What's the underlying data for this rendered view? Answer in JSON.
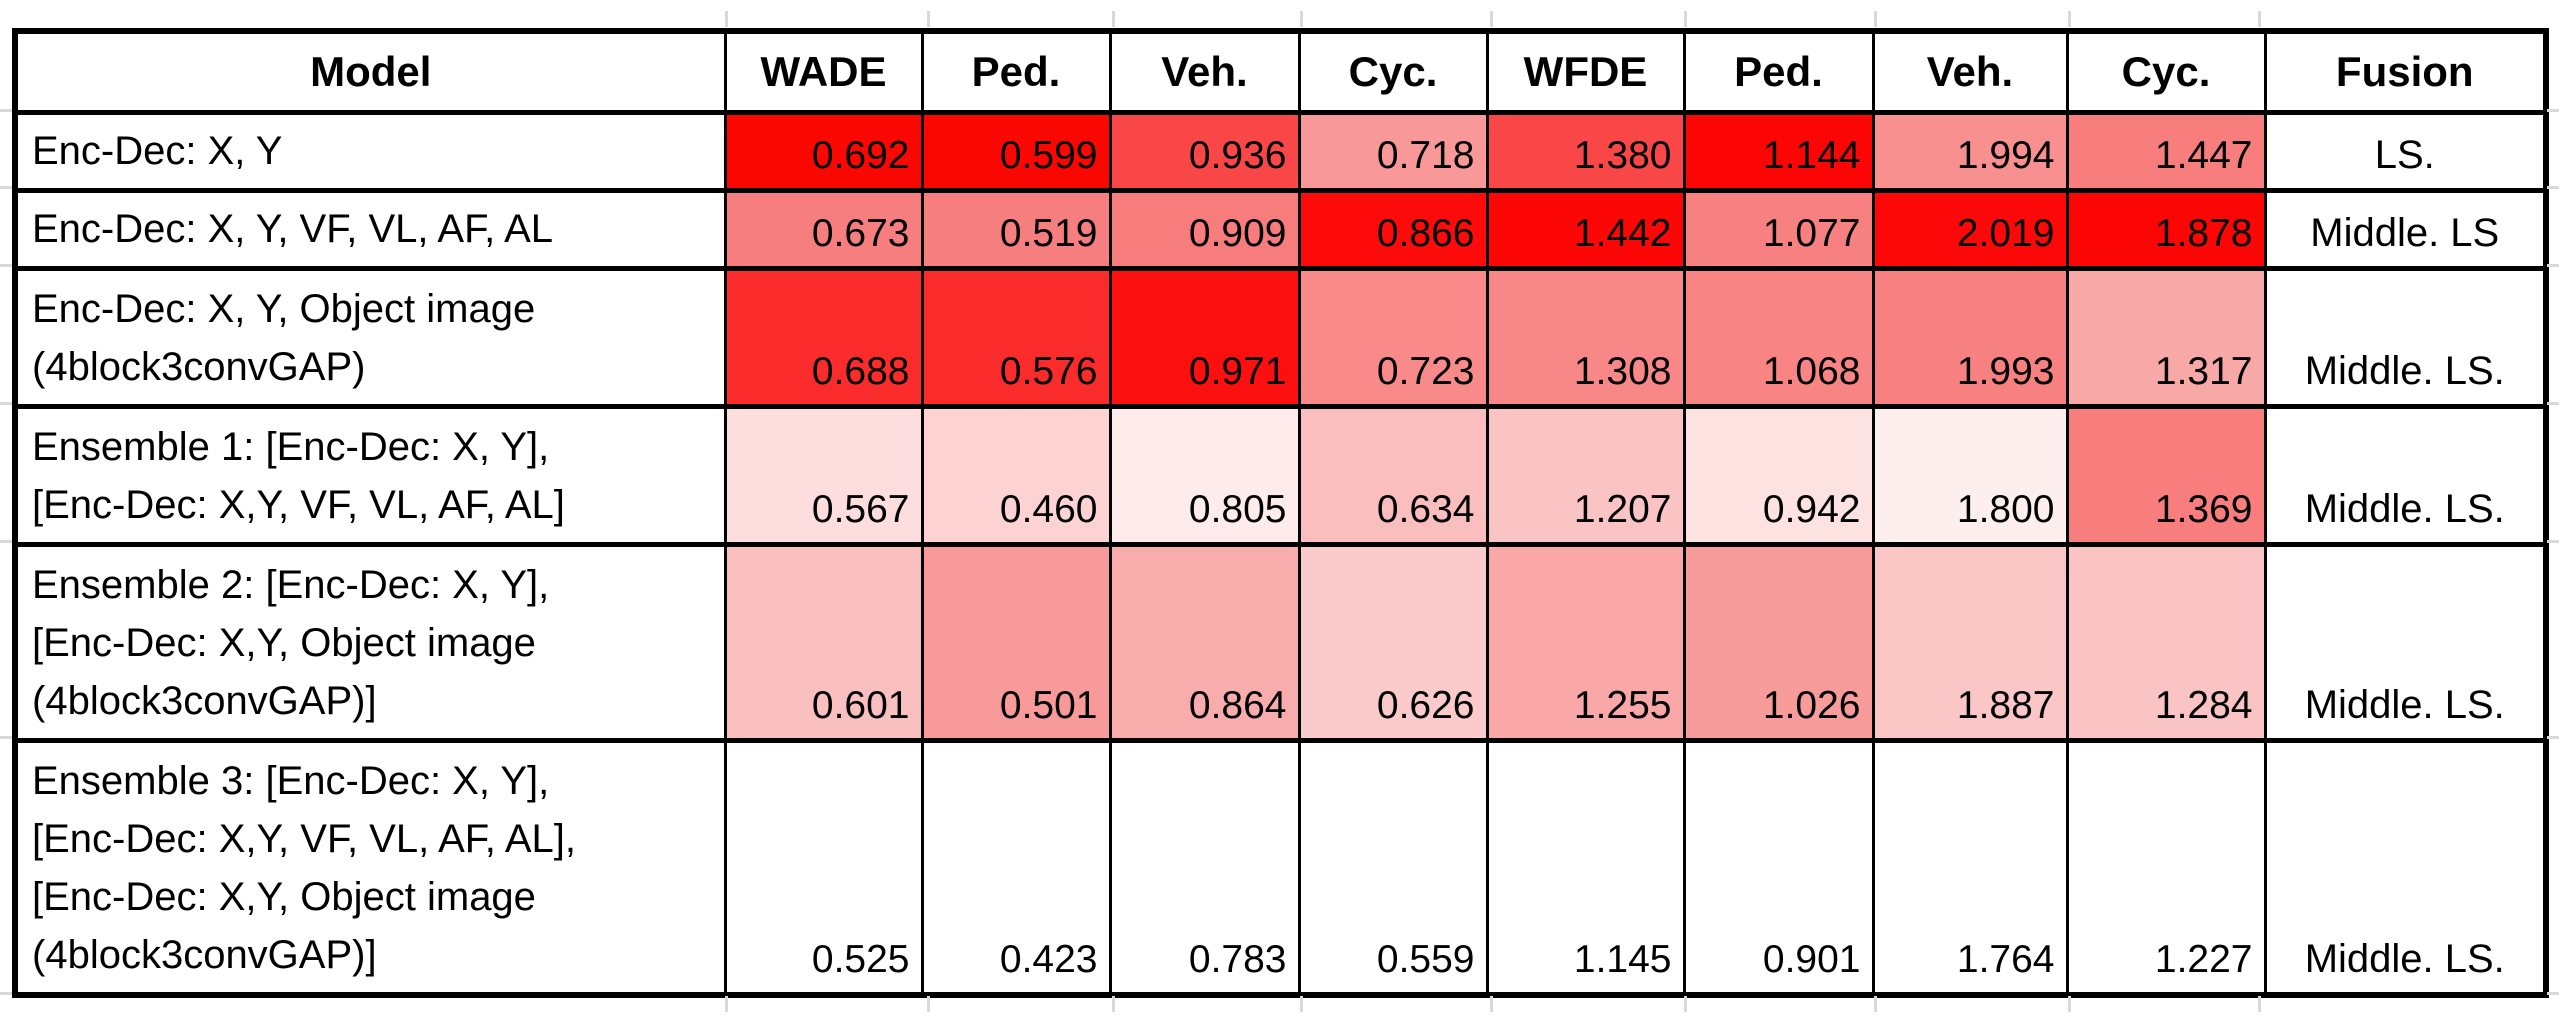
{
  "app": {
    "background_color": "#FFFFFF",
    "table_border_color": "#000000",
    "gridline_color": "#D9D9D9",
    "text_color": "#000000",
    "heatmap_max_color": "#FF0000",
    "heatmap_min_color": "#FFFFFF"
  },
  "table": {
    "headers": [
      "Model",
      "WADE",
      "Ped.",
      "Veh.",
      "Cyc.",
      "WFDE",
      "Ped.",
      "Veh.",
      "Cyc.",
      "Fusion"
    ],
    "rows": [
      {
        "model": "Enc-Dec: X, Y",
        "metrics": [
          {
            "value": "0.692",
            "bg": "#FB0702"
          },
          {
            "value": "0.599",
            "bg": "#FB0702"
          },
          {
            "value": "0.936",
            "bg": "#F94747"
          },
          {
            "value": "0.718",
            "bg": "#F89898"
          },
          {
            "value": "1.380",
            "bg": "#F94747"
          },
          {
            "value": "1.144",
            "bg": "#FC0505"
          },
          {
            "value": "1.994",
            "bg": "#F89090"
          },
          {
            "value": "1.447",
            "bg": "#F87E7E"
          }
        ],
        "fusion": "LS."
      },
      {
        "model": "Enc-Dec: X, Y, VF, VL, AF, AL",
        "metrics": [
          {
            "value": "0.673",
            "bg": "#F77E7E"
          },
          {
            "value": "0.519",
            "bg": "#F77E7E"
          },
          {
            "value": "0.909",
            "bg": "#F77D7D"
          },
          {
            "value": "0.866",
            "bg": "#FD0A0A"
          },
          {
            "value": "1.442",
            "bg": "#FC0606"
          },
          {
            "value": "1.077",
            "bg": "#F78080"
          },
          {
            "value": "2.019",
            "bg": "#FD0808"
          },
          {
            "value": "1.878",
            "bg": "#FC0505"
          }
        ],
        "fusion": "Middle. LS"
      },
      {
        "model": "Enc-Dec: X, Y, Object image\n(4block3convGAP)",
        "metrics": [
          {
            "value": "0.688",
            "bg": "#F92B2B"
          },
          {
            "value": "0.576",
            "bg": "#F92B2B"
          },
          {
            "value": "0.971",
            "bg": "#FC0F0F"
          },
          {
            "value": "0.723",
            "bg": "#F88A8A"
          },
          {
            "value": "1.308",
            "bg": "#F88787"
          },
          {
            "value": "1.068",
            "bg": "#F88484"
          },
          {
            "value": "1.993",
            "bg": "#F78080"
          },
          {
            "value": "1.317",
            "bg": "#F9A8A8"
          }
        ],
        "fusion": "Middle. LS."
      },
      {
        "model": "Ensemble 1: [Enc-Dec: X, Y],\n[Enc-Dec: X,Y, VF, VL, AF, AL]",
        "metrics": [
          {
            "value": "0.567",
            "bg": "#FDDDDD"
          },
          {
            "value": "0.460",
            "bg": "#FCD2D2"
          },
          {
            "value": "0.805",
            "bg": "#FEEBEB"
          },
          {
            "value": "0.634",
            "bg": "#FABEBE"
          },
          {
            "value": "1.207",
            "bg": "#FBC4C4"
          },
          {
            "value": "0.942",
            "bg": "#FDE2E2"
          },
          {
            "value": "1.800",
            "bg": "#FEEFEF"
          },
          {
            "value": "1.369",
            "bg": "#F87D7D"
          }
        ],
        "fusion": "Middle. LS."
      },
      {
        "model": "Ensemble 2: [Enc-Dec: X, Y],\n[Enc-Dec: X,Y, Object image\n(4block3convGAP)]",
        "metrics": [
          {
            "value": "0.601",
            "bg": "#FABFBF"
          },
          {
            "value": "0.501",
            "bg": "#F89A9A"
          },
          {
            "value": "0.864",
            "bg": "#F9ACAC"
          },
          {
            "value": "0.626",
            "bg": "#FBCACA"
          },
          {
            "value": "1.255",
            "bg": "#F9A7A7"
          },
          {
            "value": "1.026",
            "bg": "#F89B9B"
          },
          {
            "value": "1.887",
            "bg": "#FBC6C6"
          },
          {
            "value": "1.284",
            "bg": "#FBC4C4"
          }
        ],
        "fusion": "Middle. LS."
      },
      {
        "model": "Ensemble 3: [Enc-Dec: X, Y],\n[Enc-Dec: X,Y, VF, VL, AF, AL],\n[Enc-Dec: X,Y, Object image\n(4block3convGAP)]",
        "metrics": [
          {
            "value": "0.525",
            "bg": "#FFFFFF"
          },
          {
            "value": "0.423",
            "bg": "#FFFFFF"
          },
          {
            "value": "0.783",
            "bg": "#FFFFFF"
          },
          {
            "value": "0.559",
            "bg": "#FFFFFF"
          },
          {
            "value": "1.145",
            "bg": "#FFFFFF"
          },
          {
            "value": "0.901",
            "bg": "#FFFFFF"
          },
          {
            "value": "1.764",
            "bg": "#FFFFFF"
          },
          {
            "value": "1.227",
            "bg": "#FFFFFF"
          }
        ],
        "fusion": "Middle. LS."
      }
    ]
  }
}
